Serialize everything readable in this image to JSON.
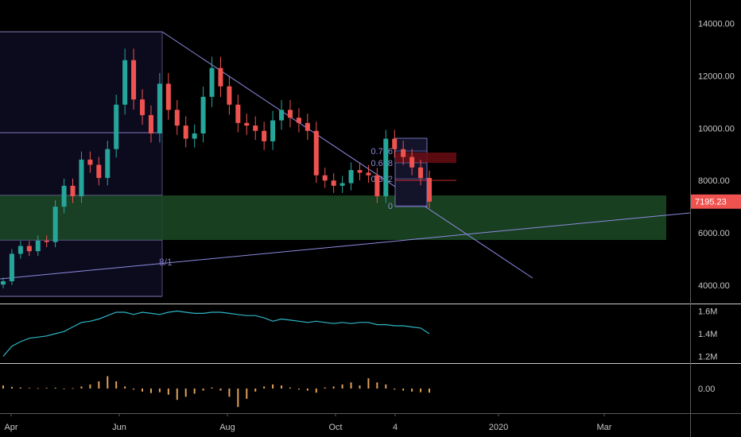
{
  "chart_data": [
    {
      "type": "candlestick",
      "title": "",
      "x_ticks": [
        "Apr",
        "Jun",
        "Aug",
        "Oct",
        "4",
        "2020",
        "Mar"
      ],
      "y_ticks": [
        "14000.00",
        "12000.00",
        "10000.00",
        "8000.00",
        "6000.00",
        "4000.00"
      ],
      "ylim": [
        3300,
        14900
      ],
      "last_price": "7195.23",
      "annotations": {
        "gann_label": "8/1",
        "fib_levels": [
          {
            "label": "0.786",
            "value": 8900
          },
          {
            "label": "0.618",
            "value": 8450
          },
          {
            "label": "0.382",
            "value": 7800
          },
          {
            "label": "0",
            "value": 6800
          }
        ]
      },
      "series": [
        {
          "values_close": [
            4150,
            5200,
            5500,
            5300,
            5700,
            5650,
            7000,
            7800,
            7400,
            8800,
            8600,
            8100,
            9200,
            10900,
            12600,
            11100,
            10500,
            9800,
            11700,
            10700,
            10100,
            9600,
            9800,
            11200,
            12300,
            11600,
            10900,
            10200,
            10100,
            9900,
            9500,
            10300,
            10700,
            10400,
            10200,
            9900,
            8200,
            8000,
            7800,
            7900,
            8400,
            8300,
            8200,
            7400,
            9600,
            9200,
            8900,
            8500,
            8100,
            7195
          ]
        }
      ]
    },
    {
      "type": "line",
      "title": "",
      "y_ticks": [
        "1.6M",
        "1.4M",
        "1.2M"
      ],
      "ylim": [
        1140000,
        1660000
      ],
      "series": [
        {
          "color": "#2fb6c7",
          "values": [
            1200000,
            1290000,
            1330000,
            1360000,
            1370000,
            1380000,
            1400000,
            1420000,
            1460000,
            1500000,
            1510000,
            1530000,
            1560000,
            1590000,
            1590000,
            1570000,
            1590000,
            1580000,
            1570000,
            1590000,
            1600000,
            1590000,
            1580000,
            1580000,
            1590000,
            1590000,
            1580000,
            1570000,
            1560000,
            1560000,
            1540000,
            1510000,
            1530000,
            1520000,
            1510000,
            1500000,
            1510000,
            1500000,
            1490000,
            1500000,
            1490000,
            1500000,
            1500000,
            1480000,
            1480000,
            1470000,
            1470000,
            1460000,
            1450000,
            1400000
          ]
        }
      ]
    },
    {
      "type": "bar",
      "title": "",
      "y_ticks": [
        "0.00"
      ],
      "ylim": [
        -1.2,
        1.2
      ],
      "series": [
        {
          "color": "#e0a15a",
          "values": [
            0.15,
            0.08,
            0.05,
            0.03,
            0.02,
            0.03,
            0.04,
            -0.03,
            0.02,
            0.1,
            0.2,
            0.35,
            0.6,
            0.35,
            0.1,
            -0.05,
            -0.15,
            -0.22,
            -0.18,
            -0.3,
            -0.55,
            -0.4,
            -0.25,
            -0.1,
            0.05,
            -0.1,
            -0.4,
            -0.9,
            -0.5,
            -0.15,
            0.1,
            0.2,
            0.15,
            0.05,
            -0.05,
            -0.1,
            -0.2,
            0.05,
            0.1,
            0.2,
            0.3,
            0.15,
            0.5,
            0.3,
            0.2,
            -0.05,
            -0.1,
            -0.15,
            -0.18,
            -0.2
          ]
        }
      ]
    }
  ]
}
